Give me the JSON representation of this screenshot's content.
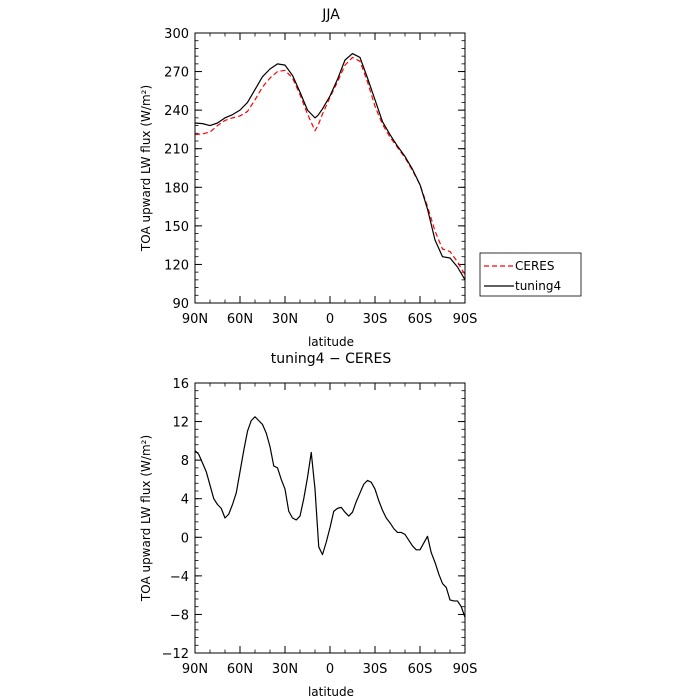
{
  "chart_data": [
    {
      "type": "line",
      "title": "JJA",
      "xlabel": "latitude",
      "ylabel": "TOA upward LW flux (W/m²)",
      "xlim": [
        90,
        -90
      ],
      "ylim": [
        90,
        300
      ],
      "x_ticks": [
        90,
        60,
        30,
        0,
        -30,
        -60,
        -90
      ],
      "x_tick_labels": [
        "90N",
        "60N",
        "30N",
        "0",
        "30S",
        "60S",
        "90S"
      ],
      "y_ticks": [
        90,
        120,
        150,
        180,
        210,
        240,
        270,
        300
      ],
      "y_tick_labels": [
        "90",
        "120",
        "150",
        "180",
        "210",
        "240",
        "270",
        "300"
      ],
      "legend_position": "outside-right",
      "series": [
        {
          "name": "CERES",
          "color": "#ff0000",
          "dash": "dashed",
          "x": [
            90,
            85,
            80,
            75,
            70,
            65,
            60,
            55,
            50,
            45,
            40,
            35,
            30,
            25,
            20,
            15,
            10,
            8,
            5,
            0,
            -5,
            -10,
            -15,
            -20,
            -25,
            -30,
            -35,
            -40,
            -45,
            -50,
            -55,
            -60,
            -65,
            -70,
            -75,
            -80,
            -85,
            -90
          ],
          "y": [
            221,
            221.5,
            223,
            228,
            232,
            234,
            235.5,
            239,
            248,
            258,
            265,
            270,
            271,
            265,
            252,
            237,
            224,
            228,
            237,
            250,
            262,
            275,
            281,
            278,
            262,
            243,
            229,
            219,
            211,
            203,
            193,
            182,
            165,
            146,
            132,
            130,
            122,
            112
          ]
        },
        {
          "name": "tuning4",
          "color": "#000000",
          "dash": "solid",
          "x": [
            90,
            85,
            80,
            75,
            70,
            65,
            60,
            55,
            50,
            45,
            40,
            35,
            30,
            25,
            20,
            15,
            10,
            8,
            5,
            0,
            -5,
            -10,
            -15,
            -20,
            -25,
            -30,
            -35,
            -40,
            -45,
            -50,
            -55,
            -60,
            -65,
            -70,
            -75,
            -80,
            -85,
            -90
          ],
          "y": [
            230,
            229.5,
            228,
            230,
            234,
            236.5,
            240,
            246,
            256,
            266,
            272,
            276,
            275,
            267,
            254,
            240,
            234,
            236,
            241,
            251,
            264,
            279,
            284,
            281,
            265,
            248,
            231,
            221,
            212,
            204,
            194,
            182,
            163,
            139,
            126,
            125,
            118,
            108
          ]
        }
      ]
    },
    {
      "type": "line",
      "title": "tuning4 − CERES",
      "xlabel": "latitude",
      "ylabel": "TOA upward LW flux (W/m²)",
      "xlim": [
        90,
        -90
      ],
      "ylim": [
        -12,
        16
      ],
      "x_ticks": [
        90,
        60,
        30,
        0,
        -30,
        -60,
        -90
      ],
      "x_tick_labels": [
        "90N",
        "60N",
        "30N",
        "0",
        "30S",
        "60S",
        "90S"
      ],
      "y_ticks": [
        -12,
        -8,
        -4,
        0,
        4,
        8,
        12,
        16
      ],
      "y_tick_labels": [
        "−12",
        "−8",
        "−4",
        "0",
        "4",
        "8",
        "12",
        "16"
      ],
      "series": [
        {
          "color": "#000000",
          "dash": "solid",
          "x": [
            90,
            87.5,
            85,
            82.5,
            80,
            77.5,
            75,
            72.5,
            70,
            67.5,
            65,
            62.5,
            60,
            57.5,
            55,
            52.5,
            50,
            47.5,
            45,
            42.5,
            40,
            37.5,
            35,
            32.5,
            30,
            27.5,
            25,
            22.5,
            20,
            17.5,
            15,
            12.5,
            10,
            7.5,
            5,
            2.5,
            0,
            -2.5,
            -5,
            -7.5,
            -10,
            -12.5,
            -15,
            -17.5,
            -20,
            -22.5,
            -25,
            -27.5,
            -30,
            -32.5,
            -35,
            -37.5,
            -40,
            -42.5,
            -45,
            -47.5,
            -50,
            -52.5,
            -55,
            -57.5,
            -60,
            -62.5,
            -65,
            -67.5,
            -70,
            -72.5,
            -75,
            -77.5,
            -80,
            -82.5,
            -85,
            -87.5,
            -90
          ],
          "y": [
            9.0,
            8.6,
            7.7,
            6.8,
            5.4,
            4.0,
            3.4,
            3.0,
            2.0,
            2.4,
            3.4,
            4.6,
            6.8,
            9.0,
            11.0,
            12.1,
            12.5,
            12.1,
            11.7,
            10.8,
            9.4,
            7.4,
            7.2,
            6.0,
            5.0,
            2.7,
            2.0,
            1.8,
            2.2,
            4.0,
            6.2,
            8.8,
            5.0,
            -1.0,
            -1.8,
            -0.5,
            1.0,
            2.7,
            3.0,
            3.1,
            2.6,
            2.2,
            2.6,
            3.7,
            4.6,
            5.5,
            5.9,
            5.7,
            5.0,
            3.8,
            2.8,
            2.0,
            1.5,
            0.9,
            0.5,
            0.5,
            0.3,
            -0.3,
            -0.9,
            -1.3,
            -1.3,
            -0.6,
            0.1,
            -1.6,
            -2.6,
            -3.8,
            -4.8,
            -5.2,
            -6.5,
            -6.6,
            -6.6,
            -7.2,
            -8.3
          ]
        }
      ]
    }
  ]
}
